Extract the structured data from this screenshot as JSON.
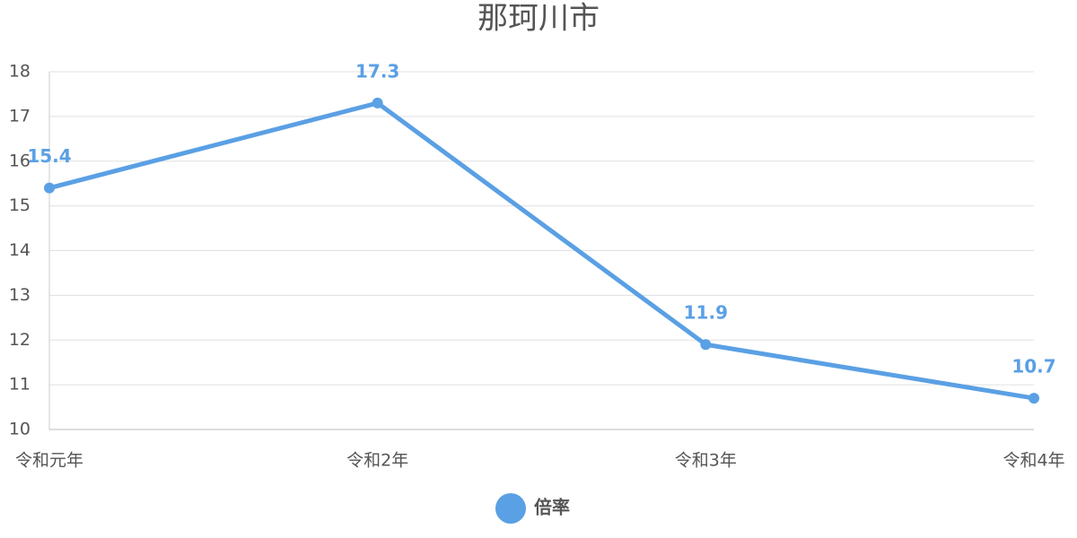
{
  "chart_data": {
    "type": "line",
    "title": "那珂川市",
    "categories": [
      "令和元年",
      "令和2年",
      "令和3年",
      "令和4年"
    ],
    "series": [
      {
        "name": "倍率",
        "color": "#5aa0e4",
        "values": [
          15.4,
          17.3,
          11.9,
          10.7
        ]
      }
    ],
    "ylim": [
      10,
      18
    ],
    "yticks": [
      10,
      11,
      12,
      13,
      14,
      15,
      16,
      17,
      18
    ],
    "grid": true,
    "legend": "bottom"
  }
}
